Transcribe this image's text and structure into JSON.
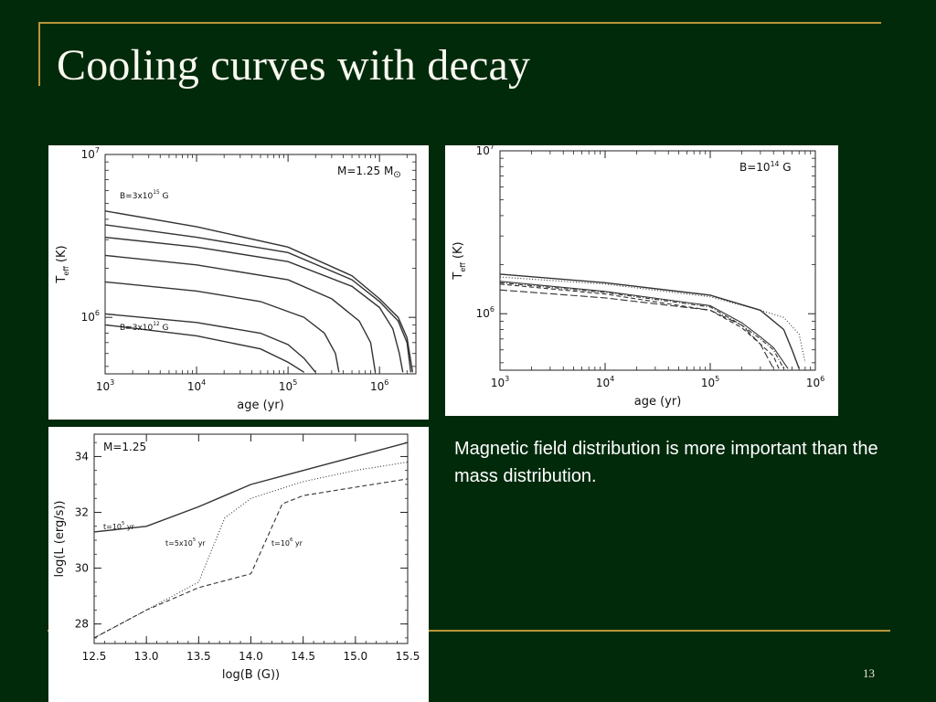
{
  "slide": {
    "title": "Cooling curves with decay",
    "text": "Magnetic field distribution is more important than the mass distribution.",
    "number": "13",
    "colors": {
      "background": "#012a0b",
      "accent_line": "#b7963a",
      "text": "#ffffff"
    }
  },
  "chart_data": [
    {
      "type": "line",
      "title": "",
      "xlabel": "age (yr)",
      "ylabel": "T_eff (K)",
      "xscale": "log",
      "yscale": "log",
      "xlim": [
        1000,
        2500000
      ],
      "ylim": [
        450000,
        10000000
      ],
      "xticks": [
        1000,
        10000,
        100000,
        1000000
      ],
      "xtick_labels": [
        {
          "base": "10",
          "exp": "3"
        },
        {
          "base": "10",
          "exp": "4"
        },
        {
          "base": "10",
          "exp": "5"
        },
        {
          "base": "10",
          "exp": "6"
        }
      ],
      "yticks": [
        1000000,
        10000000
      ],
      "ytick_labels": [
        {
          "base": "10",
          "exp": "6"
        },
        {
          "base": "10",
          "exp": "7"
        }
      ],
      "annotations": {
        "mass": {
          "pre": "M=1.25 M",
          "sub": "⊙"
        },
        "b_high": {
          "pre": "B=3x10",
          "sup": "15",
          "post": " G"
        },
        "b_low": {
          "pre": "B=3x10",
          "sup": "12",
          "post": " G"
        }
      },
      "series": [
        {
          "style": "solid",
          "x": [
            1000,
            10000,
            100000,
            500000,
            1000000,
            1600000,
            2000000,
            2300000
          ],
          "y": [
            4500000,
            3600000,
            2700000,
            1800000,
            1300000,
            1000000,
            750000,
            460000
          ]
        },
        {
          "style": "solid",
          "x": [
            1000,
            10000,
            100000,
            500000,
            1000000,
            1600000,
            2000000,
            2200000
          ],
          "y": [
            3700000,
            3100000,
            2500000,
            1700000,
            1250000,
            950000,
            700000,
            460000
          ]
        },
        {
          "style": "solid",
          "x": [
            1000,
            10000,
            100000,
            500000,
            1000000,
            1400000,
            1650000,
            1800000
          ],
          "y": [
            3100000,
            2700000,
            2200000,
            1550000,
            1150000,
            850000,
            600000,
            460000
          ]
        },
        {
          "style": "solid",
          "x": [
            1000,
            10000,
            100000,
            300000,
            600000,
            800000,
            900000
          ],
          "y": [
            2400000,
            2100000,
            1700000,
            1300000,
            950000,
            700000,
            460000
          ]
        },
        {
          "style": "solid",
          "x": [
            1000,
            10000,
            50000,
            150000,
            250000,
            330000,
            360000
          ],
          "y": [
            1650000,
            1450000,
            1250000,
            1000000,
            800000,
            600000,
            460000
          ]
        },
        {
          "style": "solid",
          "x": [
            1000,
            10000,
            50000,
            100000,
            150000,
            200000
          ],
          "y": [
            1050000,
            930000,
            800000,
            680000,
            560000,
            460000
          ]
        },
        {
          "style": "solid",
          "x": [
            1000,
            10000,
            50000,
            100000,
            150000
          ],
          "y": [
            900000,
            770000,
            640000,
            530000,
            460000
          ]
        }
      ]
    },
    {
      "type": "line",
      "title": "",
      "xlabel": "age (yr)",
      "ylabel": "T_eff (K)",
      "xscale": "log",
      "yscale": "log",
      "xlim": [
        1000,
        1000000
      ],
      "ylim": [
        450000,
        10000000
      ],
      "xticks": [
        1000,
        10000,
        100000,
        1000000
      ],
      "xtick_labels": [
        {
          "base": "10",
          "exp": "3"
        },
        {
          "base": "10",
          "exp": "4"
        },
        {
          "base": "10",
          "exp": "5"
        },
        {
          "base": "10",
          "exp": "6"
        }
      ],
      "yticks": [
        1000000,
        10000000
      ],
      "ytick_labels": [
        {
          "base": "10",
          "exp": "6"
        },
        {
          "base": "10",
          "exp": "7"
        }
      ],
      "annotations": {
        "field": {
          "pre": "B=10",
          "sup": "14",
          "post": " G"
        }
      },
      "series": [
        {
          "style": "solid",
          "x": [
            1000,
            10000,
            100000,
            300000,
            500000,
            600000,
            700000
          ],
          "y": [
            1750000,
            1550000,
            1300000,
            1050000,
            800000,
            600000,
            460000
          ]
        },
        {
          "style": "dotted",
          "x": [
            1000,
            10000,
            100000,
            300000,
            500000,
            700000,
            800000
          ],
          "y": [
            1680000,
            1520000,
            1270000,
            1050000,
            950000,
            750000,
            500000
          ]
        },
        {
          "style": "dashdot",
          "x": [
            1000,
            10000,
            100000,
            200000,
            300000,
            400000,
            500000
          ],
          "y": [
            1550000,
            1350000,
            1100000,
            850000,
            700000,
            600000,
            460000
          ]
        },
        {
          "style": "dashed",
          "x": [
            1000,
            10000,
            100000,
            200000,
            300000,
            400000,
            450000
          ],
          "y": [
            1520000,
            1320000,
            1050000,
            820000,
            650000,
            550000,
            460000
          ]
        },
        {
          "style": "solid-thin",
          "x": [
            1000,
            10000,
            100000,
            200000,
            300000,
            400000,
            550000
          ],
          "y": [
            1580000,
            1370000,
            1120000,
            880000,
            720000,
            620000,
            460000
          ]
        },
        {
          "style": "longdash",
          "x": [
            1000,
            10000,
            100000,
            200000,
            300000,
            400000
          ],
          "y": [
            1400000,
            1250000,
            1050000,
            850000,
            650000,
            460000
          ]
        }
      ]
    },
    {
      "type": "line",
      "title": "",
      "xlabel": "log(B (G))",
      "ylabel": "log(L (erg/s))",
      "xlim": [
        12.5,
        15.5
      ],
      "ylim": [
        27.3,
        34.8
      ],
      "xticks": [
        12.5,
        13.0,
        13.5,
        14.0,
        14.5,
        15.0,
        15.5
      ],
      "xtick_labels": [
        "12.5",
        "13.0",
        "13.5",
        "14.0",
        "14.5",
        "15.0",
        "15.5"
      ],
      "yticks": [
        28,
        30,
        32,
        34
      ],
      "ytick_labels": [
        "28",
        "30",
        "32",
        "34"
      ],
      "annotations": {
        "mass": {
          "text": "M=1.25"
        },
        "t1": {
          "pre": "t=10",
          "sup": "5",
          "post": " yr"
        },
        "t2": {
          "pre": "t=5x10",
          "sup": "5",
          "post": " yr"
        },
        "t3": {
          "pre": "t=10",
          "sup": "6",
          "post": " yr"
        }
      },
      "series": [
        {
          "style": "solid",
          "x": [
            12.5,
            13.0,
            13.5,
            14.0,
            14.5,
            15.0,
            15.5
          ],
          "y": [
            31.3,
            31.5,
            32.2,
            33.0,
            33.5,
            34.0,
            34.5
          ]
        },
        {
          "style": "dotted",
          "x": [
            12.5,
            13.0,
            13.5,
            13.75,
            14.0,
            14.5,
            15.0,
            15.5
          ],
          "y": [
            27.5,
            28.5,
            29.5,
            31.8,
            32.5,
            33.1,
            33.5,
            33.8
          ]
        },
        {
          "style": "dashed",
          "x": [
            12.5,
            13.0,
            13.5,
            14.0,
            14.3,
            14.5,
            15.0,
            15.5
          ],
          "y": [
            27.5,
            28.5,
            29.3,
            29.8,
            32.3,
            32.6,
            32.9,
            33.2
          ]
        }
      ]
    }
  ]
}
